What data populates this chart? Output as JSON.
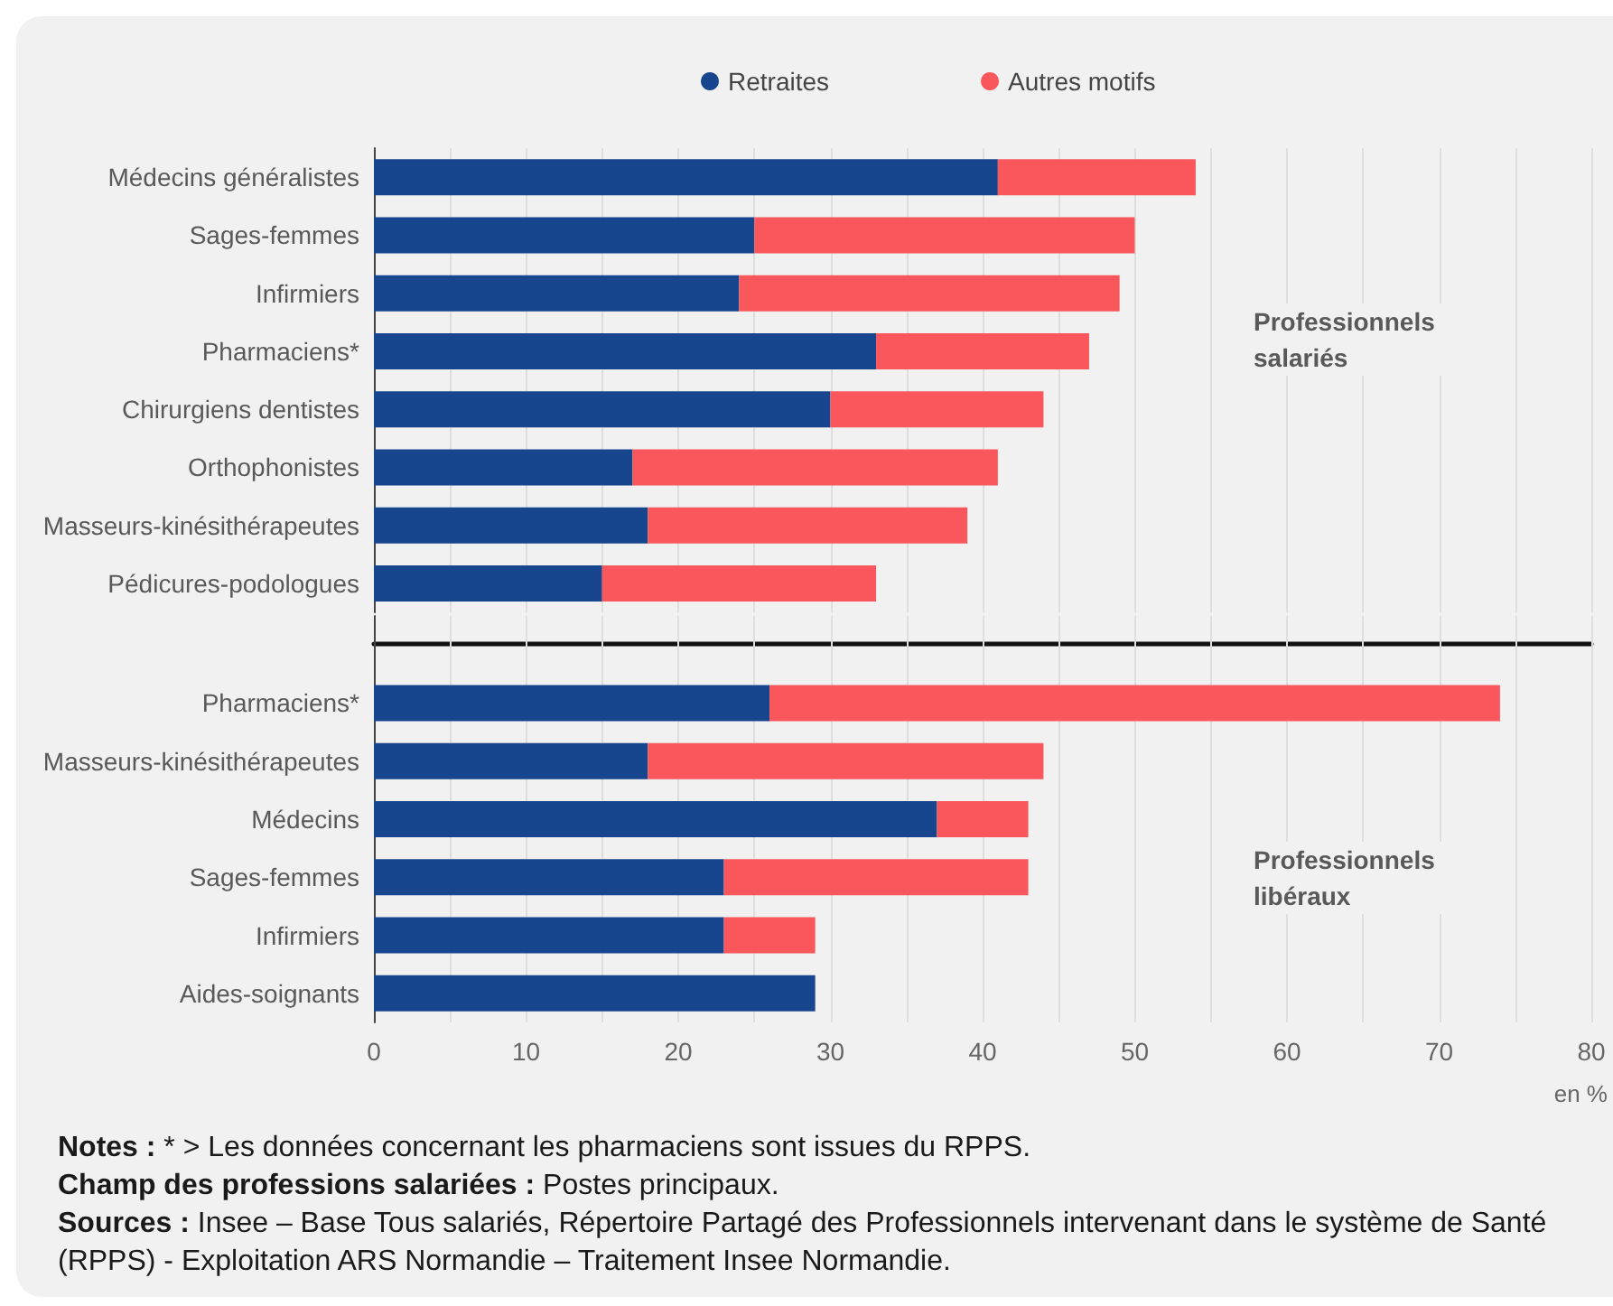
{
  "chart_data": [
    {
      "type": "bar",
      "orientation": "horizontal",
      "stacked": true,
      "categories": [
        "Médecins généralistes",
        "Sages-femmes",
        "Infirmiers",
        "Pharmaciens*",
        "Chirurgiens dentistes",
        "Orthophonistes",
        "Masseurs-kinésithérapeutes",
        "Pédicures-podologues"
      ],
      "series": [
        {
          "name": "Retraites",
          "color": "#17468f",
          "values": [
            41,
            25,
            24,
            33,
            30,
            17,
            18,
            15
          ]
        },
        {
          "name": "Autres motifs",
          "color": "#f9575b",
          "values": [
            13,
            25,
            25,
            14,
            14,
            24,
            21,
            18
          ]
        }
      ],
      "xlim": [
        0,
        80
      ],
      "xticks": [
        0,
        {
          "value": 5,
          "label": null
        },
        10,
        {
          "value": 15,
          "label": null
        },
        20,
        {
          "value": 25,
          "label": null
        },
        30,
        {
          "value": 35,
          "label": null
        },
        40,
        {
          "value": 45,
          "label": null
        },
        50,
        {
          "value": 55,
          "label": null
        },
        60,
        {
          "value": 65,
          "label": null
        },
        70,
        {
          "value": 75,
          "label": null
        },
        80
      ],
      "grid": "x",
      "legend": "top",
      "tick_labels": "y",
      "annotations": [
        "Professionnels salariés"
      ]
    },
    {
      "type": "bar",
      "orientation": "horizontal",
      "stacked": true,
      "categories": [
        "Pharmaciens*",
        "Masseurs-kinésithérapeutes",
        "Médecins",
        "Sages-femmes",
        "Infirmiers",
        "Aides-soignants"
      ],
      "series": [
        {
          "color": "#17468f",
          "values": [
            26,
            18,
            37,
            23,
            23,
            29
          ]
        },
        {
          "color": "#f9575b",
          "values": [
            48,
            26,
            6,
            20,
            6,
            null
          ]
        }
      ],
      "xlim": [
        0,
        80
      ],
      "xticks": [
        0,
        {
          "value": 5,
          "label": null
        },
        10,
        {
          "value": 15,
          "label": null
        },
        20,
        {
          "value": 25,
          "label": null
        },
        30,
        {
          "value": 35,
          "label": null
        },
        40,
        {
          "value": 45,
          "label": null
        },
        50,
        {
          "value": 55,
          "label": null
        },
        60,
        {
          "value": 65,
          "label": null
        },
        70,
        {
          "value": 75,
          "label": null
        },
        80
      ],
      "grid": "x",
      "xlabel": "en %",
      "annotations": [
        "Professionnels libéraux",
        "Notes : * > Les données concernant les pharmaciens sont issues du RPPS.",
        "Champ des professions salariées : Postes principaux.",
        "Sources : Insee – Base Tous salariés, Répertoire Partagé des Professionnels intervenant dans le système de Santé (RPPS) - Exploitation ARS Normandie – Traitement Insee Normandie."
      ]
    }
  ]
}
